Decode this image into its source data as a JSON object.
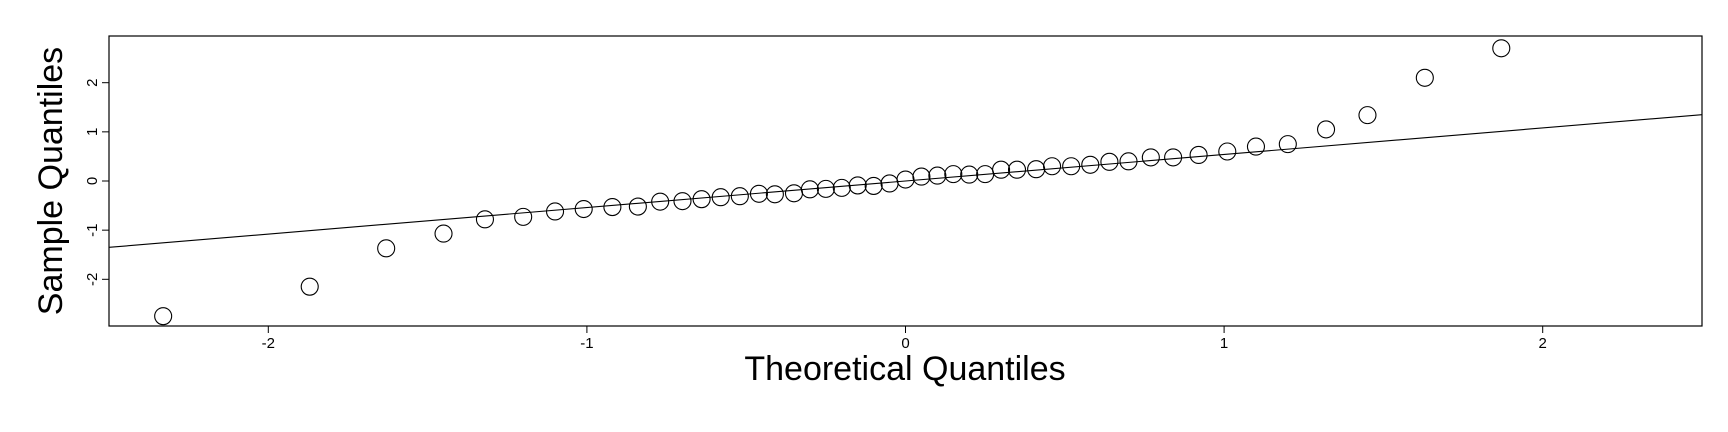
{
  "chart_data": {
    "type": "scatter",
    "title": "",
    "xlabel": "Theoretical Quantiles",
    "ylabel": "Sample Quantiles",
    "xlim": [
      -2.5,
      2.5
    ],
    "ylim": [
      -2.95,
      2.95
    ],
    "x_ticks": [
      -2,
      -1,
      0,
      1,
      2
    ],
    "x_tick_labels": [
      "-2",
      "-1",
      "0",
      "1",
      "2"
    ],
    "y_ticks": [
      -2,
      -1,
      0,
      1,
      2
    ],
    "y_tick_labels": [
      "-2",
      "-1",
      "0",
      "1",
      "2"
    ],
    "grid": false,
    "reference_line": {
      "x": [
        -2.5,
        2.5
      ],
      "y": [
        -1.35,
        1.35
      ]
    },
    "points": [
      {
        "x": -2.33,
        "y": -2.75
      },
      {
        "x": -1.87,
        "y": -2.15
      },
      {
        "x": -1.63,
        "y": -1.37
      },
      {
        "x": -1.45,
        "y": -1.07
      },
      {
        "x": -1.32,
        "y": -0.78
      },
      {
        "x": -1.2,
        "y": -0.73
      },
      {
        "x": -1.1,
        "y": -0.62
      },
      {
        "x": -1.01,
        "y": -0.57
      },
      {
        "x": -0.92,
        "y": -0.53
      },
      {
        "x": -0.84,
        "y": -0.52
      },
      {
        "x": -0.77,
        "y": -0.42
      },
      {
        "x": -0.7,
        "y": -0.41
      },
      {
        "x": -0.64,
        "y": -0.37
      },
      {
        "x": -0.58,
        "y": -0.33
      },
      {
        "x": -0.52,
        "y": -0.31
      },
      {
        "x": -0.46,
        "y": -0.26
      },
      {
        "x": -0.41,
        "y": -0.27
      },
      {
        "x": -0.35,
        "y": -0.25
      },
      {
        "x": -0.3,
        "y": -0.17
      },
      {
        "x": -0.25,
        "y": -0.16
      },
      {
        "x": -0.2,
        "y": -0.14
      },
      {
        "x": -0.15,
        "y": -0.09
      },
      {
        "x": -0.1,
        "y": -0.1
      },
      {
        "x": -0.05,
        "y": -0.05
      },
      {
        "x": 0.0,
        "y": 0.03
      },
      {
        "x": 0.05,
        "y": 0.09
      },
      {
        "x": 0.1,
        "y": 0.11
      },
      {
        "x": 0.15,
        "y": 0.14
      },
      {
        "x": 0.2,
        "y": 0.13
      },
      {
        "x": 0.25,
        "y": 0.14
      },
      {
        "x": 0.3,
        "y": 0.23
      },
      {
        "x": 0.35,
        "y": 0.23
      },
      {
        "x": 0.41,
        "y": 0.24
      },
      {
        "x": 0.46,
        "y": 0.3
      },
      {
        "x": 0.52,
        "y": 0.3
      },
      {
        "x": 0.58,
        "y": 0.33
      },
      {
        "x": 0.64,
        "y": 0.39
      },
      {
        "x": 0.7,
        "y": 0.4
      },
      {
        "x": 0.77,
        "y": 0.48
      },
      {
        "x": 0.84,
        "y": 0.48
      },
      {
        "x": 0.92,
        "y": 0.53
      },
      {
        "x": 1.01,
        "y": 0.6
      },
      {
        "x": 1.1,
        "y": 0.7
      },
      {
        "x": 1.2,
        "y": 0.75
      },
      {
        "x": 1.32,
        "y": 1.05
      },
      {
        "x": 1.45,
        "y": 1.34
      },
      {
        "x": 1.63,
        "y": 2.1
      },
      {
        "x": 1.87,
        "y": 2.7
      }
    ]
  }
}
